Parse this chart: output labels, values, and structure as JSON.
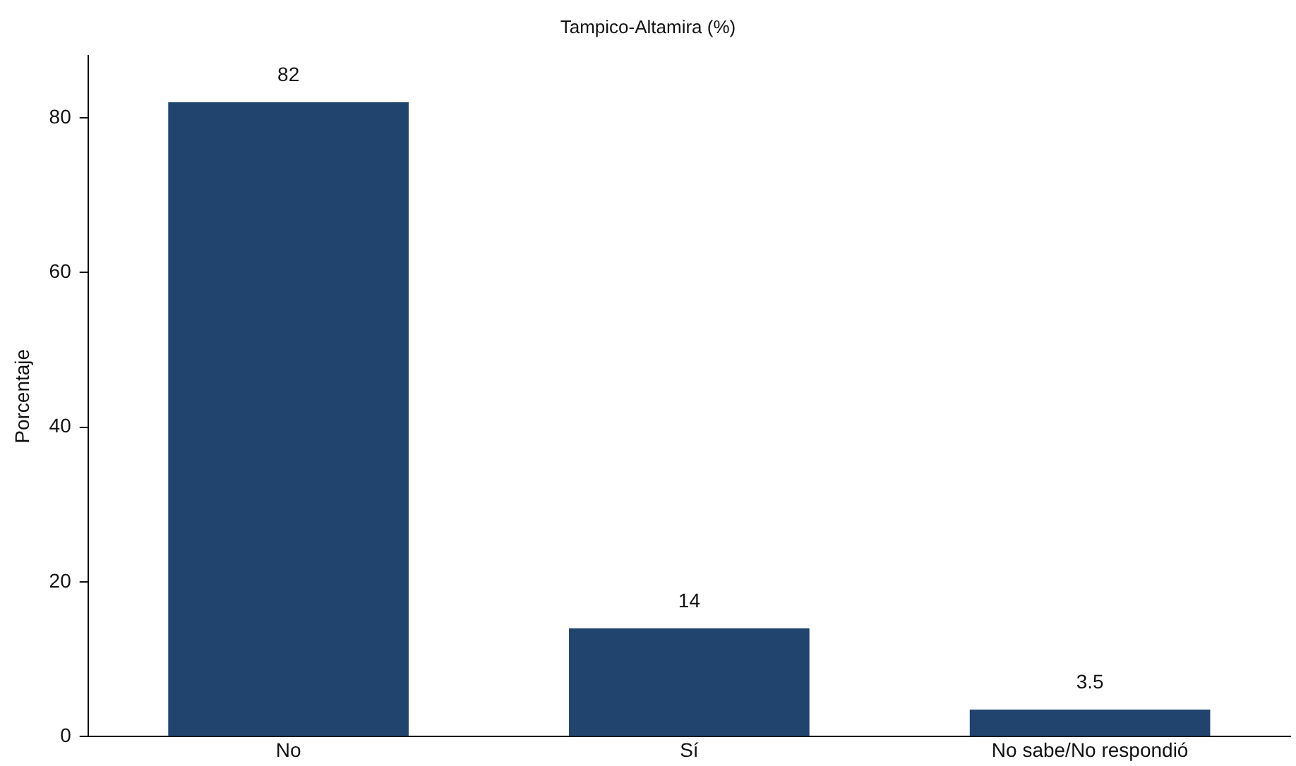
{
  "chart_data": {
    "type": "bar",
    "title": "Tampico-Altamira (%)",
    "ylabel": "Porcentaje",
    "categories": [
      "No",
      "Sí",
      "No sabe/No respondió"
    ],
    "values": [
      82,
      14,
      3.5
    ],
    "color": "#21446f",
    "ylim": [
      0,
      88
    ],
    "yticks": [
      0,
      20,
      40,
      60,
      80
    ],
    "grid": false,
    "legend": false,
    "data_labels": true
  }
}
